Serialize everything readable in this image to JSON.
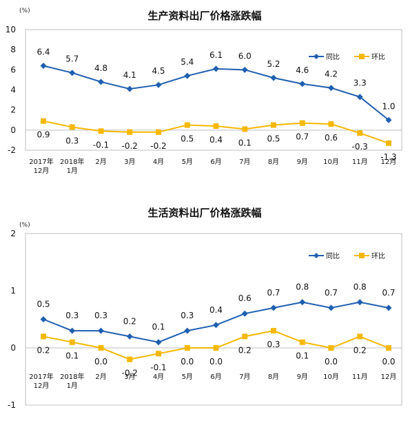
{
  "chart_data": [
    {
      "type": "line",
      "title": "生产资料出厂价格涨跌幅",
      "unit": "(%)",
      "ylim": [
        -2,
        10
      ],
      "yticks": [
        "-2",
        "0",
        "2",
        "4",
        "6",
        "8",
        "10"
      ],
      "categories": [
        "2017年 12月",
        "2018年 1月",
        "2月",
        "3月",
        "4月",
        "5月",
        "6月",
        "7月",
        "8月",
        "9月",
        "10月",
        "11月",
        "12月"
      ],
      "grid": false,
      "legend_position": "top-right",
      "series": [
        {
          "name": "同比",
          "color": "#1f5fb0",
          "marker": "diamond",
          "values": [
            6.4,
            5.7,
            4.8,
            4.1,
            4.5,
            5.4,
            6.1,
            6.0,
            5.2,
            4.6,
            4.2,
            3.3,
            1.0
          ],
          "labels": [
            "6.4",
            "5.7",
            "4.8",
            "4.1",
            "4.5",
            "5.4",
            "6.1",
            "6.0",
            "5.2",
            "4.6",
            "4.2",
            "3.3",
            "1.0"
          ]
        },
        {
          "name": "环比",
          "color": "#f5b800",
          "marker": "square",
          "values": [
            0.9,
            0.3,
            -0.1,
            -0.2,
            -0.2,
            0.5,
            0.4,
            0.1,
            0.5,
            0.7,
            0.6,
            -0.3,
            -1.3
          ],
          "labels": [
            "0.9",
            "0.3",
            "-0.1",
            "-0.2",
            "-0.2",
            "0.5",
            "0.4",
            "0.1",
            "0.5",
            "0.7",
            "0.6",
            "-0.3",
            "-1.3"
          ]
        }
      ]
    },
    {
      "type": "line",
      "title": "生活资料出厂价格涨跌幅",
      "unit": "(%)",
      "ylim": [
        -1,
        2
      ],
      "yticks": [
        "-1",
        "0",
        "1",
        "2"
      ],
      "categories": [
        "2017年 12月",
        "2018年 1月",
        "2月",
        "3月",
        "4月",
        "5月",
        "6月",
        "7月",
        "8月",
        "9月",
        "10月",
        "11月",
        "12月"
      ],
      "grid": false,
      "legend_position": "top-right",
      "series": [
        {
          "name": "同比",
          "color": "#1f5fb0",
          "marker": "diamond",
          "values": [
            0.5,
            0.3,
            0.3,
            0.2,
            0.1,
            0.3,
            0.4,
            0.6,
            0.7,
            0.8,
            0.7,
            0.8,
            0.7
          ],
          "labels": [
            "0.5",
            "0.3",
            "0.3",
            "0.2",
            "0.1",
            "0.3",
            "0.4",
            "0.6",
            "0.7",
            "0.8",
            "0.7",
            "0.8",
            "0.7"
          ]
        },
        {
          "name": "环比",
          "color": "#f5b800",
          "marker": "square",
          "values": [
            0.2,
            0.1,
            0.0,
            -0.2,
            -0.1,
            0.0,
            0.0,
            0.2,
            0.3,
            0.1,
            0.0,
            0.2,
            0.0
          ],
          "labels": [
            "0.2",
            "0.1",
            "0.0",
            "-0.2",
            "-0.1",
            "0.0",
            "0.0",
            "0.2",
            "0.3",
            "0.1",
            "0.0",
            "0.2",
            "0.0"
          ]
        }
      ]
    }
  ]
}
